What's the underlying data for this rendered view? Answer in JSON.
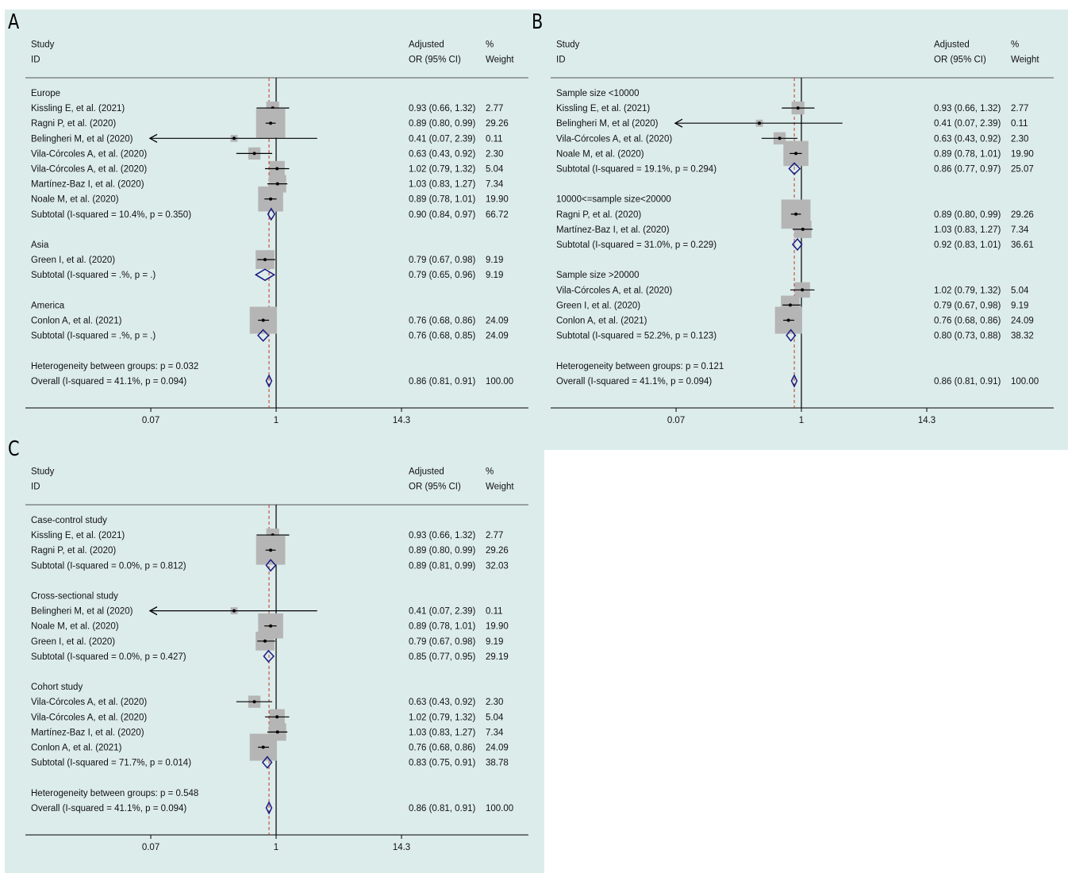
{
  "chart_data": [
    {
      "panel": "A",
      "type": "forest",
      "scale": "log",
      "xticks": [
        {
          "value": 0.07,
          "label": "0.07"
        },
        {
          "value": 1,
          "label": "1"
        },
        {
          "value": 14.3,
          "label": "14.3"
        }
      ],
      "overall_estimate": 0.86,
      "headers": {
        "study_1": "Study",
        "study_2": "ID",
        "or_1": "Adjusted",
        "or_2": "OR (95% CI)",
        "w_1": "%",
        "w_2": "Weight"
      },
      "rows": [
        {
          "kind": "group",
          "label": "Europe"
        },
        {
          "kind": "study",
          "label": "Kissling E, et al. (2021)",
          "est": 0.93,
          "lo": 0.66,
          "hi": 1.32,
          "ci_text": "0.93 (0.66, 1.32)",
          "weight": 2.77,
          "weight_text": "2.77"
        },
        {
          "kind": "study",
          "label": "Ragni P, et al. (2020)",
          "est": 0.89,
          "lo": 0.8,
          "hi": 0.99,
          "ci_text": "0.89 (0.80, 0.99)",
          "weight": 29.26,
          "weight_text": "29.26"
        },
        {
          "kind": "study",
          "label": "Belingheri M, et al (2020)",
          "est": 0.41,
          "lo": 0.07,
          "hi": 2.39,
          "ci_text": "0.41 (0.07, 2.39)",
          "weight": 0.11,
          "weight_text": "0.11",
          "arrow_left": true
        },
        {
          "kind": "study",
          "label": "Vila-Córcoles A, et al. (2020)",
          "est": 0.63,
          "lo": 0.43,
          "hi": 0.92,
          "ci_text": "0.63 (0.43, 0.92)",
          "weight": 2.3,
          "weight_text": "2.30"
        },
        {
          "kind": "study",
          "label": "Vila-Córcoles A, et al. (2020)",
          "est": 1.02,
          "lo": 0.79,
          "hi": 1.32,
          "ci_text": "1.02 (0.79, 1.32)",
          "weight": 5.04,
          "weight_text": "5.04"
        },
        {
          "kind": "study",
          "label": "Martínez-Baz I, et al. (2020)",
          "est": 1.03,
          "lo": 0.83,
          "hi": 1.27,
          "ci_text": "1.03 (0.83, 1.27)",
          "weight": 7.34,
          "weight_text": "7.34"
        },
        {
          "kind": "study",
          "label": "Noale M, et al. (2020)",
          "est": 0.89,
          "lo": 0.78,
          "hi": 1.01,
          "ci_text": "0.89 (0.78, 1.01)",
          "weight": 19.9,
          "weight_text": "19.90"
        },
        {
          "kind": "subtotal",
          "label": "Subtotal  (I-squared = 10.4%, p = 0.350)",
          "est": 0.9,
          "lo": 0.84,
          "hi": 0.97,
          "ci_text": "0.90 (0.84, 0.97)",
          "weight_text": "66.72"
        },
        {
          "kind": "spacer"
        },
        {
          "kind": "group",
          "label": "Asia"
        },
        {
          "kind": "study",
          "label": "Green I, et al. (2020)",
          "est": 0.79,
          "lo": 0.67,
          "hi": 0.98,
          "ci_text": "0.79 (0.67, 0.98)",
          "weight": 9.19,
          "weight_text": "9.19"
        },
        {
          "kind": "subtotal",
          "label": "Subtotal  (I-squared = .%, p = .)",
          "est": 0.79,
          "lo": 0.65,
          "hi": 0.96,
          "ci_text": "0.79 (0.65, 0.96)",
          "weight_text": "9.19"
        },
        {
          "kind": "spacer"
        },
        {
          "kind": "group",
          "label": "America"
        },
        {
          "kind": "study",
          "label": "Conlon A, et al. (2021)",
          "est": 0.76,
          "lo": 0.68,
          "hi": 0.86,
          "ci_text": "0.76 (0.68, 0.86)",
          "weight": 24.09,
          "weight_text": "24.09"
        },
        {
          "kind": "subtotal",
          "label": "Subtotal  (I-squared = .%, p = .)",
          "est": 0.76,
          "lo": 0.68,
          "hi": 0.85,
          "ci_text": "0.76 (0.68, 0.85)",
          "weight_text": "24.09"
        },
        {
          "kind": "spacer"
        },
        {
          "kind": "note",
          "label": "Heterogeneity between groups: p = 0.032"
        },
        {
          "kind": "overall",
          "label": "Overall  (I-squared = 41.1%, p = 0.094)",
          "est": 0.86,
          "lo": 0.81,
          "hi": 0.91,
          "ci_text": "0.86 (0.81, 0.91)",
          "weight_text": "100.00"
        }
      ]
    },
    {
      "panel": "B",
      "type": "forest",
      "scale": "log",
      "xticks": [
        {
          "value": 0.07,
          "label": "0.07"
        },
        {
          "value": 1,
          "label": "1"
        },
        {
          "value": 14.3,
          "label": "14.3"
        }
      ],
      "overall_estimate": 0.86,
      "headers": {
        "study_1": "Study",
        "study_2": "ID",
        "or_1": "Adjusted",
        "or_2": "OR (95% CI)",
        "w_1": "%",
        "w_2": "Weight"
      },
      "rows": [
        {
          "kind": "group",
          "label": "Sample size <10000"
        },
        {
          "kind": "study",
          "label": "Kissling E, et al. (2021)",
          "est": 0.93,
          "lo": 0.66,
          "hi": 1.32,
          "ci_text": "0.93 (0.66, 1.32)",
          "weight": 2.77,
          "weight_text": "2.77"
        },
        {
          "kind": "study",
          "label": "Belingheri M, et al (2020)",
          "est": 0.41,
          "lo": 0.07,
          "hi": 2.39,
          "ci_text": "0.41 (0.07, 2.39)",
          "weight": 0.11,
          "weight_text": "0.11",
          "arrow_left": true
        },
        {
          "kind": "study",
          "label": "Vila-Córcoles A, et al. (2020)",
          "est": 0.63,
          "lo": 0.43,
          "hi": 0.92,
          "ci_text": "0.63 (0.43, 0.92)",
          "weight": 2.3,
          "weight_text": "2.30"
        },
        {
          "kind": "study",
          "label": "Noale M, et al. (2020)",
          "est": 0.89,
          "lo": 0.78,
          "hi": 1.01,
          "ci_text": "0.89 (0.78, 1.01)",
          "weight": 19.9,
          "weight_text": "19.90"
        },
        {
          "kind": "subtotal",
          "label": "Subtotal  (I-squared = 19.1%, p = 0.294)",
          "est": 0.86,
          "lo": 0.77,
          "hi": 0.97,
          "ci_text": "0.86 (0.77, 0.97)",
          "weight_text": "25.07"
        },
        {
          "kind": "spacer"
        },
        {
          "kind": "group",
          "label": "10000<=sample size<20000"
        },
        {
          "kind": "study",
          "label": "Ragni P, et al. (2020)",
          "est": 0.89,
          "lo": 0.8,
          "hi": 0.99,
          "ci_text": "0.89 (0.80, 0.99)",
          "weight": 29.26,
          "weight_text": "29.26"
        },
        {
          "kind": "study",
          "label": "Martínez-Baz I, et al. (2020)",
          "est": 1.03,
          "lo": 0.83,
          "hi": 1.27,
          "ci_text": "1.03 (0.83, 1.27)",
          "weight": 7.34,
          "weight_text": "7.34"
        },
        {
          "kind": "subtotal",
          "label": "Subtotal  (I-squared = 31.0%, p = 0.229)",
          "est": 0.92,
          "lo": 0.83,
          "hi": 1.01,
          "ci_text": "0.92 (0.83, 1.01)",
          "weight_text": "36.61"
        },
        {
          "kind": "spacer"
        },
        {
          "kind": "group",
          "label": "Sample size >20000"
        },
        {
          "kind": "study",
          "label": "Vila-Córcoles A, et al. (2020)",
          "est": 1.02,
          "lo": 0.79,
          "hi": 1.32,
          "ci_text": "1.02 (0.79, 1.32)",
          "weight": 5.04,
          "weight_text": "5.04"
        },
        {
          "kind": "study",
          "label": "Green I, et al. (2020)",
          "est": 0.79,
          "lo": 0.67,
          "hi": 0.98,
          "ci_text": "0.79 (0.67, 0.98)",
          "weight": 9.19,
          "weight_text": "9.19"
        },
        {
          "kind": "study",
          "label": "Conlon A, et al. (2021)",
          "est": 0.76,
          "lo": 0.68,
          "hi": 0.86,
          "ci_text": "0.76 (0.68, 0.86)",
          "weight": 24.09,
          "weight_text": "24.09"
        },
        {
          "kind": "subtotal",
          "label": "Subtotal  (I-squared = 52.2%, p = 0.123)",
          "est": 0.8,
          "lo": 0.73,
          "hi": 0.88,
          "ci_text": "0.80 (0.73, 0.88)",
          "weight_text": "38.32"
        },
        {
          "kind": "spacer"
        },
        {
          "kind": "note",
          "label": "Heterogeneity between groups: p = 0.121"
        },
        {
          "kind": "overall",
          "label": "Overall  (I-squared = 41.1%, p = 0.094)",
          "est": 0.86,
          "lo": 0.81,
          "hi": 0.91,
          "ci_text": "0.86 (0.81, 0.91)",
          "weight_text": "100.00"
        }
      ]
    },
    {
      "panel": "C",
      "type": "forest",
      "scale": "log",
      "xticks": [
        {
          "value": 0.07,
          "label": "0.07"
        },
        {
          "value": 1,
          "label": "1"
        },
        {
          "value": 14.3,
          "label": "14.3"
        }
      ],
      "overall_estimate": 0.86,
      "headers": {
        "study_1": "Study",
        "study_2": "ID",
        "or_1": "Adjusted",
        "or_2": "OR (95% CI)",
        "w_1": "%",
        "w_2": "Weight"
      },
      "rows": [
        {
          "kind": "group",
          "label": "Case-control study"
        },
        {
          "kind": "study",
          "label": "Kissling E, et al. (2021)",
          "est": 0.93,
          "lo": 0.66,
          "hi": 1.32,
          "ci_text": "0.93 (0.66, 1.32)",
          "weight": 2.77,
          "weight_text": "2.77"
        },
        {
          "kind": "study",
          "label": "Ragni P, et al. (2020)",
          "est": 0.89,
          "lo": 0.8,
          "hi": 0.99,
          "ci_text": "0.89 (0.80, 0.99)",
          "weight": 29.26,
          "weight_text": "29.26"
        },
        {
          "kind": "subtotal",
          "label": "Subtotal  (I-squared = 0.0%, p = 0.812)",
          "est": 0.89,
          "lo": 0.81,
          "hi": 0.99,
          "ci_text": "0.89 (0.81, 0.99)",
          "weight_text": "32.03"
        },
        {
          "kind": "spacer"
        },
        {
          "kind": "group",
          "label": "Cross-sectional study"
        },
        {
          "kind": "study",
          "label": "Belingheri M, et al (2020)",
          "est": 0.41,
          "lo": 0.07,
          "hi": 2.39,
          "ci_text": "0.41 (0.07, 2.39)",
          "weight": 0.11,
          "weight_text": "0.11",
          "arrow_left": true
        },
        {
          "kind": "study",
          "label": "Noale M, et al. (2020)",
          "est": 0.89,
          "lo": 0.78,
          "hi": 1.01,
          "ci_text": "0.89 (0.78, 1.01)",
          "weight": 19.9,
          "weight_text": "19.90"
        },
        {
          "kind": "study",
          "label": "Green I, et al. (2020)",
          "est": 0.79,
          "lo": 0.67,
          "hi": 0.98,
          "ci_text": "0.79 (0.67, 0.98)",
          "weight": 9.19,
          "weight_text": "9.19"
        },
        {
          "kind": "subtotal",
          "label": "Subtotal  (I-squared = 0.0%, p = 0.427)",
          "est": 0.85,
          "lo": 0.77,
          "hi": 0.95,
          "ci_text": "0.85 (0.77, 0.95)",
          "weight_text": "29.19"
        },
        {
          "kind": "spacer"
        },
        {
          "kind": "group",
          "label": "Cohort study"
        },
        {
          "kind": "study",
          "label": "Vila-Córcoles A, et al. (2020)",
          "est": 0.63,
          "lo": 0.43,
          "hi": 0.92,
          "ci_text": "0.63 (0.43, 0.92)",
          "weight": 2.3,
          "weight_text": "2.30"
        },
        {
          "kind": "study",
          "label": "Vila-Córcoles A, et al. (2020)",
          "est": 1.02,
          "lo": 0.79,
          "hi": 1.32,
          "ci_text": "1.02 (0.79, 1.32)",
          "weight": 5.04,
          "weight_text": "5.04"
        },
        {
          "kind": "study",
          "label": "Martínez-Baz I, et al. (2020)",
          "est": 1.03,
          "lo": 0.83,
          "hi": 1.27,
          "ci_text": "1.03 (0.83, 1.27)",
          "weight": 7.34,
          "weight_text": "7.34"
        },
        {
          "kind": "study",
          "label": "Conlon A, et al. (2021)",
          "est": 0.76,
          "lo": 0.68,
          "hi": 0.86,
          "ci_text": "0.76 (0.68, 0.86)",
          "weight": 24.09,
          "weight_text": "24.09"
        },
        {
          "kind": "subtotal",
          "label": "Subtotal  (I-squared = 71.7%, p = 0.014)",
          "est": 0.83,
          "lo": 0.75,
          "hi": 0.91,
          "ci_text": "0.83 (0.75, 0.91)",
          "weight_text": "38.78"
        },
        {
          "kind": "spacer"
        },
        {
          "kind": "note",
          "label": "Heterogeneity between groups: p = 0.548"
        },
        {
          "kind": "overall",
          "label": "Overall  (I-squared = 41.1%, p = 0.094)",
          "est": 0.86,
          "lo": 0.81,
          "hi": 0.91,
          "ci_text": "0.86 (0.81, 0.91)",
          "weight_text": "100.00"
        }
      ]
    }
  ],
  "colors": {
    "panel_background": "#dcecea",
    "weight_box": "#b5b5b5",
    "diamond": "#1a1a80",
    "overall_line": "#c0392b",
    "axis": "#000000"
  }
}
